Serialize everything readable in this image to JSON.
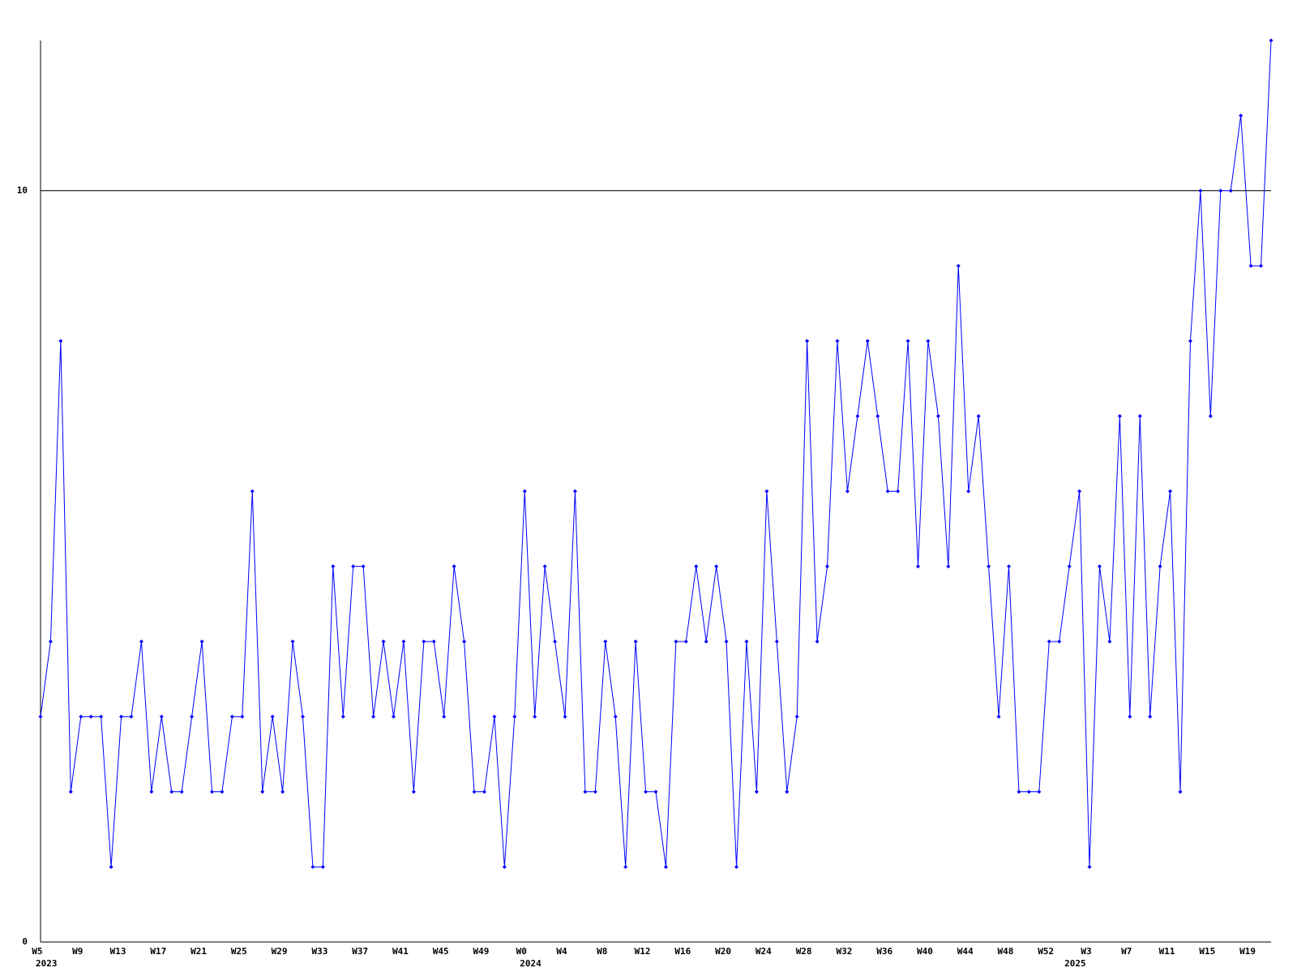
{
  "chart_data": {
    "type": "line",
    "categories": [
      "W5",
      null,
      null,
      null,
      "W9",
      null,
      null,
      null,
      "W13",
      null,
      null,
      null,
      "W17",
      null,
      null,
      null,
      "W21",
      null,
      null,
      null,
      "W25",
      null,
      null,
      null,
      "W29",
      null,
      null,
      null,
      "W33",
      null,
      null,
      null,
      "W37",
      null,
      null,
      null,
      "W41",
      null,
      null,
      null,
      "W45",
      null,
      null,
      null,
      "W49",
      null,
      null,
      null,
      "W0",
      null,
      null,
      null,
      "W4",
      null,
      null,
      null,
      "W8",
      null,
      null,
      null,
      "W12",
      null,
      null,
      null,
      "W16",
      null,
      null,
      null,
      "W20",
      null,
      null,
      null,
      "W24",
      null,
      null,
      null,
      "W28",
      null,
      null,
      null,
      "W32",
      null,
      null,
      null,
      "W36",
      null,
      null,
      null,
      "W40",
      null,
      null,
      null,
      "W44",
      null,
      null,
      null,
      "W48",
      null,
      null,
      null,
      "W52",
      null,
      null,
      null,
      "W3",
      null,
      null,
      null,
      "W7",
      null,
      null,
      null,
      "W11",
      null,
      null,
      null,
      "W15",
      null,
      null,
      null,
      "W19",
      null,
      null
    ],
    "year_labels": [
      "2023",
      null,
      null,
      null,
      null,
      null,
      null,
      null,
      null,
      null,
      null,
      null,
      null,
      null,
      null,
      null,
      null,
      null,
      null,
      null,
      null,
      null,
      null,
      null,
      null,
      null,
      null,
      null,
      null,
      null,
      null,
      null,
      null,
      null,
      null,
      null,
      null,
      null,
      null,
      null,
      null,
      null,
      null,
      null,
      null,
      null,
      null,
      null,
      "2024",
      null,
      null,
      null,
      null,
      null,
      null,
      null,
      null,
      null,
      null,
      null,
      null,
      null,
      null,
      null,
      null,
      null,
      null,
      null,
      null,
      null,
      null,
      null,
      null,
      null,
      null,
      null,
      null,
      null,
      null,
      null,
      null,
      null,
      null,
      null,
      null,
      null,
      null,
      null,
      null,
      null,
      null,
      null,
      null,
      null,
      null,
      null,
      null,
      null,
      null,
      null,
      null,
      null,
      "2025",
      null,
      null,
      null,
      null,
      null,
      null,
      null,
      null,
      null,
      null,
      null,
      null,
      null,
      null,
      null,
      null,
      null,
      null,
      null,
      null
    ],
    "series": [
      {
        "color": "#0000ff",
        "values": [
          3,
          4,
          8,
          2,
          3,
          3,
          3,
          1,
          3,
          3,
          4,
          2,
          3,
          2,
          2,
          3,
          4,
          2,
          2,
          3,
          3,
          6,
          2,
          3,
          2,
          4,
          3,
          1,
          1,
          5,
          3,
          5,
          5,
          3,
          4,
          3,
          4,
          2,
          4,
          4,
          3,
          5,
          4,
          2,
          2,
          3,
          1,
          3,
          6,
          3,
          5,
          4,
          3,
          6,
          2,
          2,
          4,
          3,
          1,
          4,
          2,
          2,
          1,
          4,
          4,
          5,
          4,
          5,
          4,
          1,
          4,
          2,
          6,
          4,
          2,
          3,
          8,
          4,
          5,
          8,
          6,
          7,
          8,
          7,
          6,
          6,
          8,
          5,
          8,
          7,
          5,
          9,
          6,
          7,
          5,
          3,
          5,
          2,
          2,
          2,
          4,
          4,
          5,
          6,
          1,
          5,
          4,
          7,
          3,
          7,
          3,
          5,
          6,
          2,
          8,
          10,
          7,
          10,
          10,
          11,
          9,
          9,
          12
        ]
      }
    ],
    "ylim": [
      0,
      12
    ],
    "yticks": [
      0,
      10
    ],
    "grid": true
  }
}
